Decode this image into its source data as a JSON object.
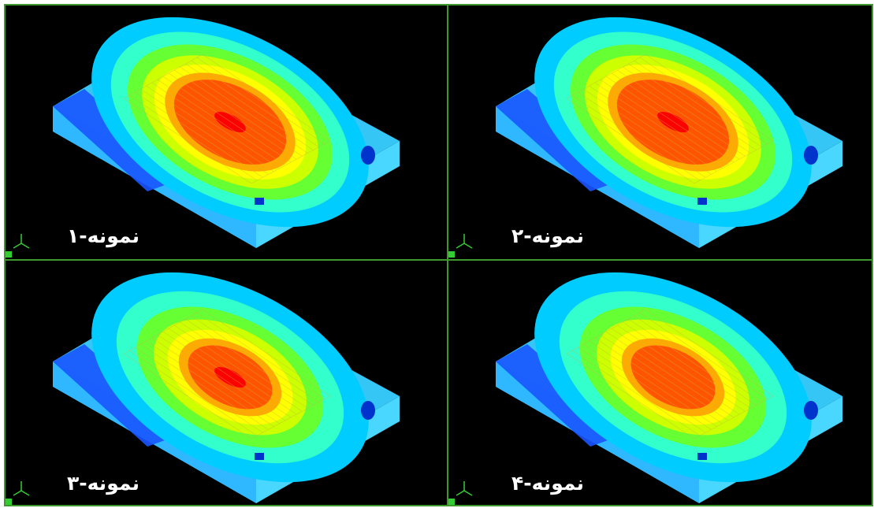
{
  "viewports": [
    {
      "label": "نمونه-۱"
    },
    {
      "label": "نمونه-۲"
    },
    {
      "label": "نمونه-۳"
    },
    {
      "label": "نمونه-۴"
    }
  ],
  "colors": {
    "background": "#000000",
    "divider": "#3b9a2a",
    "triad": "#33cc33",
    "contour_scale": [
      "#0000ff",
      "#0066ff",
      "#00ccff",
      "#33ffcc",
      "#66ff33",
      "#ccff00",
      "#ffff00",
      "#ffaa00",
      "#ff5500",
      "#ff0000"
    ]
  },
  "icons": {
    "axis_triad": "axis-triad-icon"
  }
}
